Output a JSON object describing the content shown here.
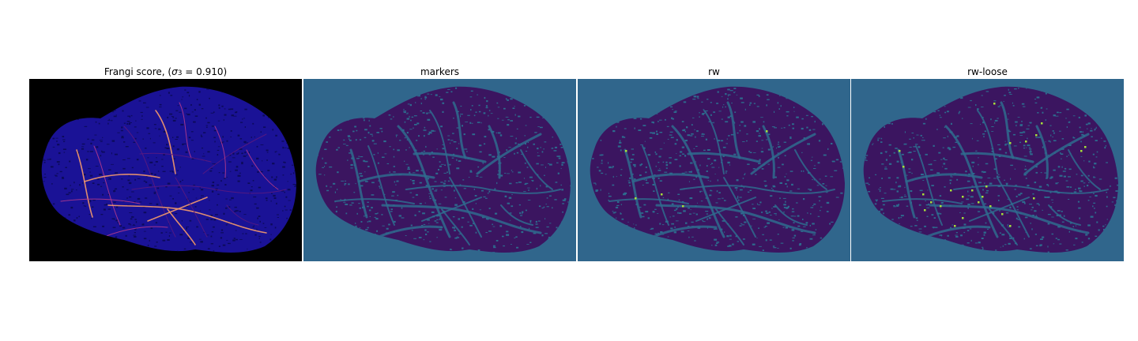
{
  "figure": {
    "panels": [
      {
        "title_prefix": "Frangi score, (",
        "title_sigma": "σ",
        "title_sub": "3",
        "title_suffix": " = 0.910)",
        "background_color": "#000000",
        "tissue_color": "#1a1296",
        "speckle_color": "#0c0a5a",
        "vessel_colors": [
          "#f59a6a",
          "#b23a8c",
          "#5a1a80"
        ]
      },
      {
        "title": "markers",
        "background_color": "#30668c",
        "tissue_color": "#3b1560",
        "speckle_color": "#2d6b8e",
        "vessel_colors": [
          "#2f6b8e"
        ]
      },
      {
        "title": "rw",
        "background_color": "#30668c",
        "tissue_color": "#3b1560",
        "speckle_color": "#2d6b8e",
        "vessel_colors": [
          "#2f6b8e"
        ],
        "highlight_color": "#a6e03a"
      },
      {
        "title": "rw-loose",
        "background_color": "#30668c",
        "tissue_color": "#3b1560",
        "speckle_color": "#2d6b8e",
        "vessel_colors": [
          "#2f6b8e"
        ],
        "highlight_color": "#a6e03a"
      }
    ]
  }
}
